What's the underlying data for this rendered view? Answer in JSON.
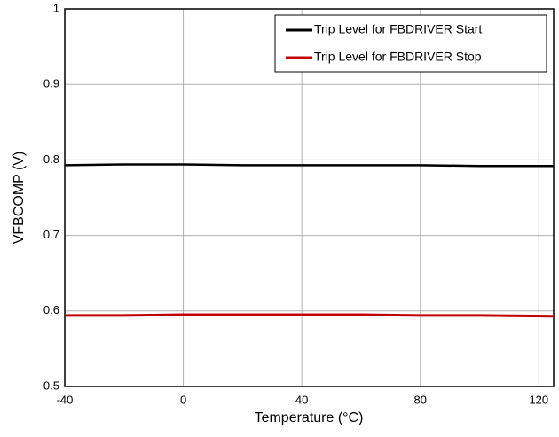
{
  "chart_data": {
    "type": "line",
    "x_label": "Temperature (°C)",
    "y_label": "VFBCOMP (V)",
    "x": [
      -40,
      -20,
      0,
      20,
      40,
      60,
      80,
      100,
      125
    ],
    "series": [
      {
        "name": "Trip Level for FBDRIVER Start",
        "color": "#000000",
        "values": [
          0.793,
          0.794,
          0.794,
          0.793,
          0.793,
          0.793,
          0.793,
          0.792,
          0.792
        ]
      },
      {
        "name": "Trip Level for FBDRIVER Stop",
        "color": "#c00000",
        "values": [
          0.594,
          0.594,
          0.595,
          0.595,
          0.595,
          0.595,
          0.594,
          0.594,
          0.593
        ]
      }
    ],
    "xlim": [
      -40,
      125
    ],
    "ylim": [
      0.5,
      1
    ],
    "xticks": [
      -40,
      0,
      40,
      80,
      120
    ],
    "yticks": [
      0.5,
      0.6,
      0.7,
      0.8,
      0.9,
      1
    ],
    "grid": true,
    "legend": "top-right"
  }
}
